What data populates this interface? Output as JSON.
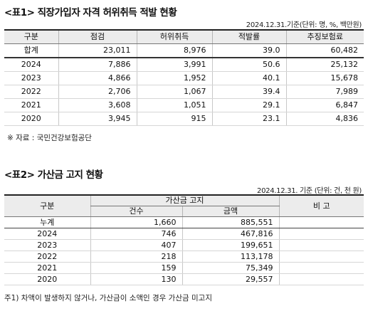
{
  "table1": {
    "title": "<표1> 직장가입자 자격 허위취득 적발 현황",
    "as_of": "2024.12.31.기준(단위: 명, %, 백만원)",
    "headers": [
      "구분",
      "점검",
      "허위취득",
      "적발률",
      "추징보험료"
    ],
    "rows": [
      [
        "합계",
        "23,011",
        "8,976",
        "39.0",
        "60,482"
      ],
      [
        "2024",
        "7,886",
        "3,991",
        "50.6",
        "25,132"
      ],
      [
        "2023",
        "4,866",
        "1,952",
        "40.1",
        "15,678"
      ],
      [
        "2022",
        "2,706",
        "1,067",
        "39.4",
        "7,989"
      ],
      [
        "2021",
        "3,608",
        "1,051",
        "29.1",
        "6,847"
      ],
      [
        "2020",
        "3,945",
        "915",
        "23.1",
        "4,836"
      ]
    ],
    "source": "※ 자료 : 국민건강보험공단"
  },
  "table2": {
    "title": "<표2> 가산금 고지 현황",
    "as_of": "2024.12.31. 기준 (단위: 건, 천 원)",
    "headers": {
      "category": "구분",
      "group": "가산금 고지",
      "count": "건수",
      "amount": "금액",
      "note": "비 고"
    },
    "rows": [
      [
        "누계",
        "1,660",
        "885,551"
      ],
      [
        "2024",
        "746",
        "467,816"
      ],
      [
        "2023",
        "407",
        "199,651"
      ],
      [
        "2022",
        "218",
        "113,178"
      ],
      [
        "2021",
        "159",
        "75,349"
      ],
      [
        "2020",
        "130",
        "29,557"
      ]
    ],
    "footnote": "주1) 차액이 발생하지 않거나, 가산금이 소액인 경우 가산금 미고지"
  }
}
